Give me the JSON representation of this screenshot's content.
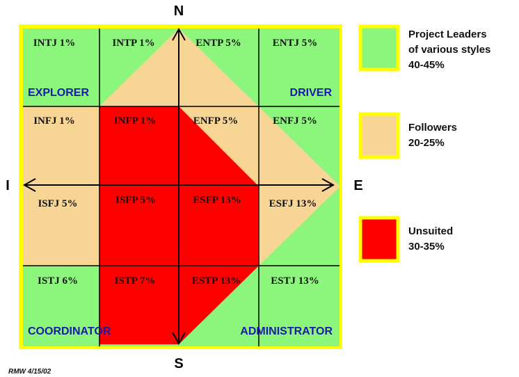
{
  "colors": {
    "leaders": "#8cf57c",
    "followers": "#f7d595",
    "unsuited": "#ff0000",
    "frame": "#ffff00",
    "grid": "#000000",
    "corner_text": "#1a1aa8"
  },
  "axes": {
    "north": "N",
    "south": "S",
    "west": "I",
    "east": "E"
  },
  "grid": {
    "rows": [
      [
        "INTJ 1%",
        "INTP 1%",
        "ENTP 5%",
        "ENTJ 5%"
      ],
      [
        "INFJ 1%",
        "INFP 1%",
        "ENFP 5%",
        "ENFJ 5%"
      ],
      [
        "ISFJ 5%",
        "ISFP 5%",
        "ESFP 13%",
        "ESFJ 13%"
      ],
      [
        "ISTJ 6%",
        "ISTP 7%",
        "ESTP 13%",
        "ESTJ 13%"
      ]
    ]
  },
  "corners": {
    "top_left": "EXPLORER",
    "top_right": "DRIVER",
    "bottom_left": "COORDINATOR",
    "bottom_right": "ADMINISTRATOR"
  },
  "legend": [
    {
      "key": "leaders",
      "lines": [
        "Project Leaders",
        "of various styles",
        "40-45%"
      ]
    },
    {
      "key": "followers",
      "lines": [
        "Followers",
        "20-25%"
      ]
    },
    {
      "key": "unsuited",
      "lines": [
        "Unsuited",
        "30-35%"
      ]
    }
  ],
  "footer": "RMW 4/15/02"
}
